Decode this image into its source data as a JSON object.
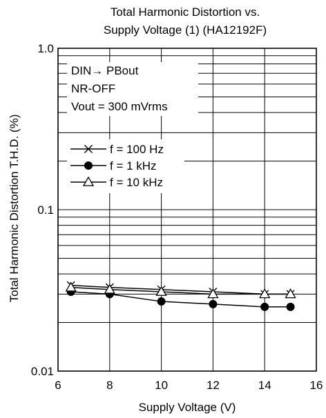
{
  "chart_data": {
    "type": "line",
    "title_lines": [
      "Total Harmonic Distortion vs.",
      "Supply Voltage (1) (HA12192F)"
    ],
    "xlabel": "Supply Voltage  (V)",
    "ylabel": "Total Harmonic Distortion  T.H.D.  (%)",
    "xlim": [
      6,
      16
    ],
    "ylim": [
      0.01,
      1.0
    ],
    "y_scale": "log",
    "grid": true,
    "x_ticks": [
      6,
      8,
      10,
      12,
      14,
      16
    ],
    "x_tick_labels": [
      "6",
      "8",
      "10",
      "12",
      "14",
      "16"
    ],
    "y_tick_values": [
      0.01,
      0.1,
      1.0
    ],
    "y_tick_labels": [
      "0.01",
      "0.1",
      "1.0"
    ],
    "conditions": [
      "DIN→ PBout",
      "NR-OFF",
      "Vout = 300 mVrms"
    ],
    "legend_placement": "upper-left",
    "series": [
      {
        "name": "f = 100 Hz",
        "marker": "x",
        "x": [
          6.5,
          8,
          10,
          12,
          14,
          15
        ],
        "y": [
          0.034,
          0.033,
          0.032,
          0.031,
          0.03,
          0.03
        ]
      },
      {
        "name": "f = 1 kHz",
        "marker": "filled-circle",
        "x": [
          6.5,
          8,
          10,
          12,
          14,
          15
        ],
        "y": [
          0.031,
          0.03,
          0.027,
          0.026,
          0.025,
          0.025
        ]
      },
      {
        "name": "f = 10 kHz",
        "marker": "open-triangle",
        "x": [
          6.5,
          8,
          10,
          12,
          14,
          15
        ],
        "y": [
          0.033,
          0.032,
          0.031,
          0.03,
          0.03,
          0.03
        ]
      }
    ]
  }
}
